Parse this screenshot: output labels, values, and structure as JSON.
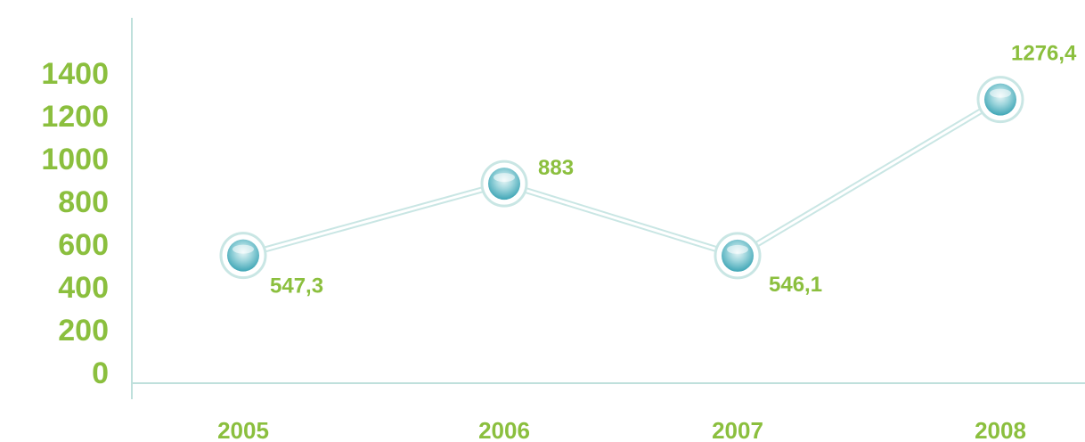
{
  "chart_data": {
    "type": "line",
    "categories": [
      "2005",
      "2006",
      "2007",
      "2008"
    ],
    "values": [
      547.3,
      883,
      546.1,
      1276.4
    ],
    "data_labels": [
      "547,3",
      "883",
      "546,1",
      "1276,4"
    ],
    "y_ticks": [
      "0",
      "200",
      "400",
      "600",
      "800",
      "1000",
      "1200",
      "1400"
    ],
    "ylim": [
      0,
      1400
    ],
    "title": "",
    "xlabel": "",
    "ylabel": "",
    "grid": false,
    "colors": {
      "label": "#8bbf3e",
      "axis": "#bfe0dc",
      "line": "#d8ecea",
      "marker_fill": "#5ab8c6",
      "marker_ring": "#c9e6e4"
    }
  }
}
